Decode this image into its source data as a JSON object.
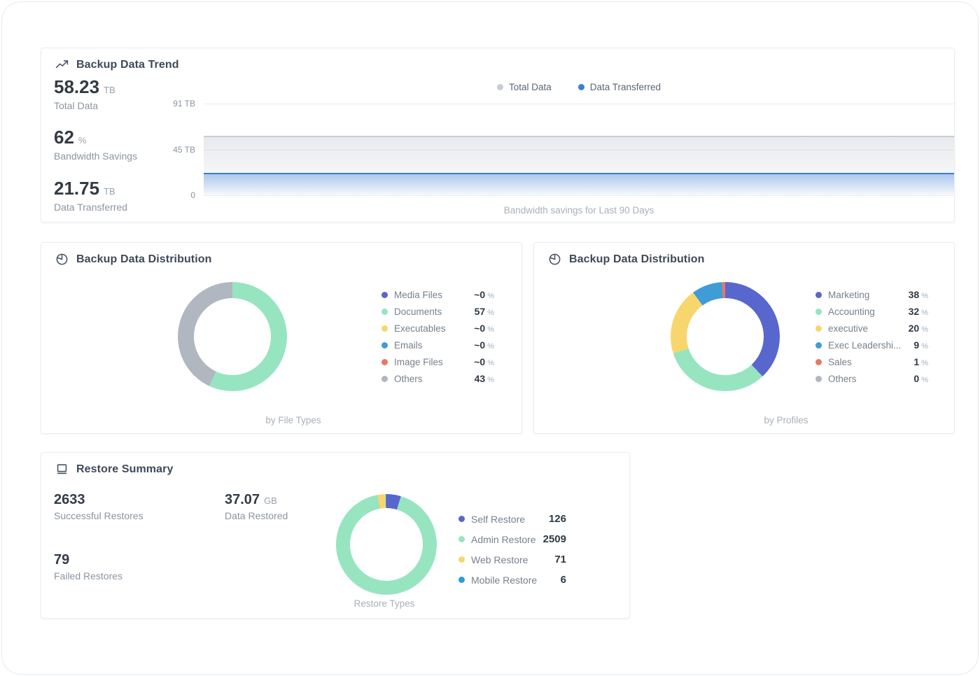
{
  "trend_card": {
    "title": "Backup Data Trend",
    "stats": [
      {
        "value": "58.23",
        "unit": "TB",
        "label": "Total Data"
      },
      {
        "value": "62",
        "unit": "%",
        "label": "Bandwidth Savings"
      },
      {
        "value": "21.75",
        "unit": "TB",
        "label": "Data Transferred"
      }
    ]
  },
  "file_types_card": {
    "title": "Backup Data Distribution"
  },
  "profiles_card": {
    "title": "Backup Data Distribution"
  },
  "restore_card": {
    "title": "Restore Summary",
    "stats": [
      {
        "value": "2633",
        "unit": "",
        "label": "Successful Restores"
      },
      {
        "value": "37.07",
        "unit": "GB",
        "label": "Data Restored"
      },
      {
        "value": "79",
        "unit": "",
        "label": "Failed Restores"
      }
    ]
  },
  "chart_data": [
    {
      "id": "backup-data-trend",
      "type": "area",
      "title": "Backup Data Trend",
      "x_caption": "Bandwidth savings for Last 90 Days",
      "x_range_days": 90,
      "grid": true,
      "legend_position": "top-center",
      "y_axis": {
        "max": 91,
        "ticks": [
          {
            "value": 91,
            "label": "91 TB"
          },
          {
            "value": 45,
            "label": "45 TB"
          },
          {
            "value": 0,
            "label": "0"
          }
        ]
      },
      "series": [
        {
          "name": "Total Data",
          "shape": "flat",
          "value_tb": 58.23,
          "color": "#c7cdd6",
          "fill_from": "rgba(176,184,196,0.30)",
          "fill_to": "rgba(176,184,196,0.02)"
        },
        {
          "name": "Data Transferred",
          "shape": "flat",
          "value_tb": 21.75,
          "color": "#3b7fd9",
          "fill_from": "rgba(59,127,217,0.40)",
          "fill_to": "rgba(59,127,217,0.03)"
        }
      ]
    },
    {
      "id": "by-file-types",
      "type": "donut",
      "caption": "by File Types",
      "slices": [
        {
          "label": "Media Files",
          "value": 0,
          "display": "~0",
          "unit": "%",
          "color": "#5867cd"
        },
        {
          "label": "Documents",
          "value": 57,
          "display": "57",
          "unit": "%",
          "color": "#97e4c1"
        },
        {
          "label": "Executables",
          "value": 0,
          "display": "~0",
          "unit": "%",
          "color": "#f8d66e"
        },
        {
          "label": "Emails",
          "value": 0,
          "display": "~0",
          "unit": "%",
          "color": "#3f9cd6"
        },
        {
          "label": "Image Files",
          "value": 0,
          "display": "~0",
          "unit": "%",
          "color": "#e87767"
        },
        {
          "label": "Others",
          "value": 43,
          "display": "43",
          "unit": "%",
          "color": "#b0b7c1"
        }
      ]
    },
    {
      "id": "by-profiles",
      "type": "donut",
      "caption": "by Profiles",
      "slices": [
        {
          "label": "Marketing",
          "value": 38,
          "display": "38",
          "unit": "%",
          "color": "#5867cd"
        },
        {
          "label": "Accounting",
          "value": 32,
          "display": "32",
          "unit": "%",
          "color": "#97e4c1"
        },
        {
          "label": "executive",
          "value": 20,
          "display": "20",
          "unit": "%",
          "color": "#f8d66e"
        },
        {
          "label": "Exec Leadershi...",
          "value": 9,
          "display": "9",
          "unit": "%",
          "color": "#3f9cd6"
        },
        {
          "label": "Sales",
          "value": 1,
          "display": "1",
          "unit": "%",
          "color": "#e87767"
        },
        {
          "label": "Others",
          "value": 0,
          "display": "0",
          "unit": "%",
          "color": "#b0b7c1"
        }
      ]
    },
    {
      "id": "restore-types",
      "type": "donut",
      "caption": "Restore Types",
      "slices": [
        {
          "label": "Self Restore",
          "value": 126,
          "display": "126",
          "unit": "",
          "color": "#5867cd"
        },
        {
          "label": "Admin Restore",
          "value": 2509,
          "display": "2509",
          "unit": "",
          "color": "#97e4c1"
        },
        {
          "label": "Web Restore",
          "value": 71,
          "display": "71",
          "unit": "",
          "color": "#f8d66e"
        },
        {
          "label": "Mobile Restore",
          "value": 6,
          "display": "6",
          "unit": "",
          "color": "#2f9cd8"
        }
      ]
    }
  ]
}
